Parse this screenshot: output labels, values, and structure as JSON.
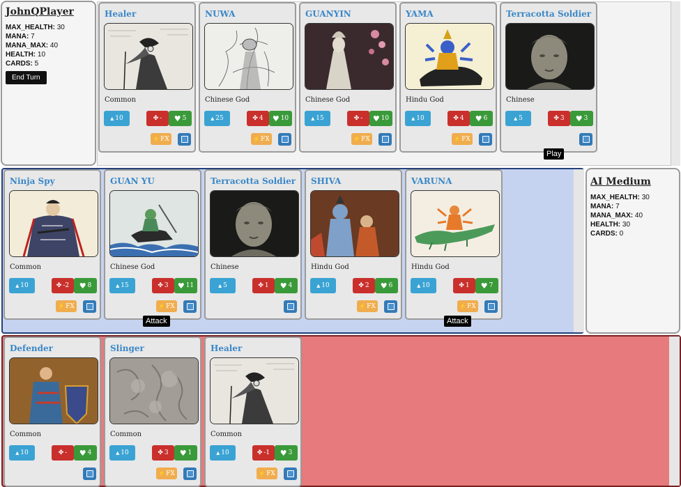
{
  "player": {
    "name": "JohnQPlayer",
    "stats": [
      {
        "label": "MAX_HEALTH:",
        "value": "30"
      },
      {
        "label": "MANA:",
        "value": "7"
      },
      {
        "label": "MANA_MAX:",
        "value": "40"
      },
      {
        "label": "HEALTH:",
        "value": "10"
      },
      {
        "label": "CARDS:",
        "value": "5"
      }
    ],
    "end_turn_label": "End Turn"
  },
  "ai": {
    "name": "AI Medium",
    "stats": [
      {
        "label": "MAX_HEALTH:",
        "value": "30"
      },
      {
        "label": "MANA:",
        "value": "7"
      },
      {
        "label": "MANA_MAX:",
        "value": "40"
      },
      {
        "label": "HEALTH:",
        "value": "30"
      },
      {
        "label": "CARDS:",
        "value": "0"
      }
    ]
  },
  "icons": {
    "mana": "water-drop-icon",
    "attack": "crosshair-icon",
    "health": "heart-icon",
    "fx": "lightning-bolt-icon",
    "info": "square-info-icon"
  },
  "colors": {
    "title": "#3a87c8",
    "mana": "#3aa3d3",
    "attack": "#c9302c",
    "health": "#3a9a3a",
    "fx": "#f0ad4e",
    "info": "#337ab7",
    "board": "#c6d3f0",
    "enemy_zone": "#e67a7c"
  },
  "fx_label": "FX",
  "hand": [
    {
      "title": "Healer",
      "type": "Common",
      "mana": "10",
      "attack": "-",
      "health": "5",
      "fx": true,
      "art": "plague-doctor"
    },
    {
      "title": "NUWA",
      "type": "Chinese God",
      "mana": "25",
      "attack": "4",
      "health": "10",
      "fx": true,
      "art": "nuwa"
    },
    {
      "title": "GUANYIN",
      "type": "Chinese God",
      "mana": "15",
      "attack": "-",
      "health": "10",
      "fx": true,
      "art": "guanyin"
    },
    {
      "title": "YAMA",
      "type": "Hindu God",
      "mana": "10",
      "attack": "4",
      "health": "6",
      "fx": true,
      "art": "yama"
    },
    {
      "title": "Terracotta Soldier",
      "type": "Chinese",
      "mana": "5",
      "attack": "3",
      "health": "3",
      "fx": false,
      "art": "terracotta",
      "tag": "Play"
    }
  ],
  "board": [
    {
      "title": "Ninja Spy",
      "type": "Common",
      "mana": "10",
      "attack": "-2",
      "health": "8",
      "fx": true,
      "art": "ninja"
    },
    {
      "title": "GUAN YU",
      "type": "Chinese God",
      "mana": "15",
      "attack": "3",
      "health": "11",
      "fx": true,
      "art": "guanyu",
      "tag": "Attack"
    },
    {
      "title": "Terracotta Soldier",
      "type": "Chinese",
      "mana": "5",
      "attack": "1",
      "health": "4",
      "fx": false,
      "art": "terracotta"
    },
    {
      "title": "SHIVA",
      "type": "Hindu God",
      "mana": "10",
      "attack": "2",
      "health": "6",
      "fx": true,
      "art": "shiva"
    },
    {
      "title": "VARUNA",
      "type": "Hindu God",
      "mana": "10",
      "attack": "1",
      "health": "7",
      "fx": true,
      "art": "varuna",
      "tag": "Attack"
    }
  ],
  "enemy": [
    {
      "title": "Defender",
      "type": "Common",
      "mana": "10",
      "attack": "-",
      "health": "4",
      "fx": false,
      "art": "defender"
    },
    {
      "title": "Slinger",
      "type": "Common",
      "mana": "10",
      "attack": "3",
      "health": "1",
      "fx": true,
      "art": "slinger"
    },
    {
      "title": "Healer",
      "type": "Common",
      "mana": "10",
      "attack": "-1",
      "health": "3",
      "fx": true,
      "art": "plague-doctor"
    }
  ]
}
